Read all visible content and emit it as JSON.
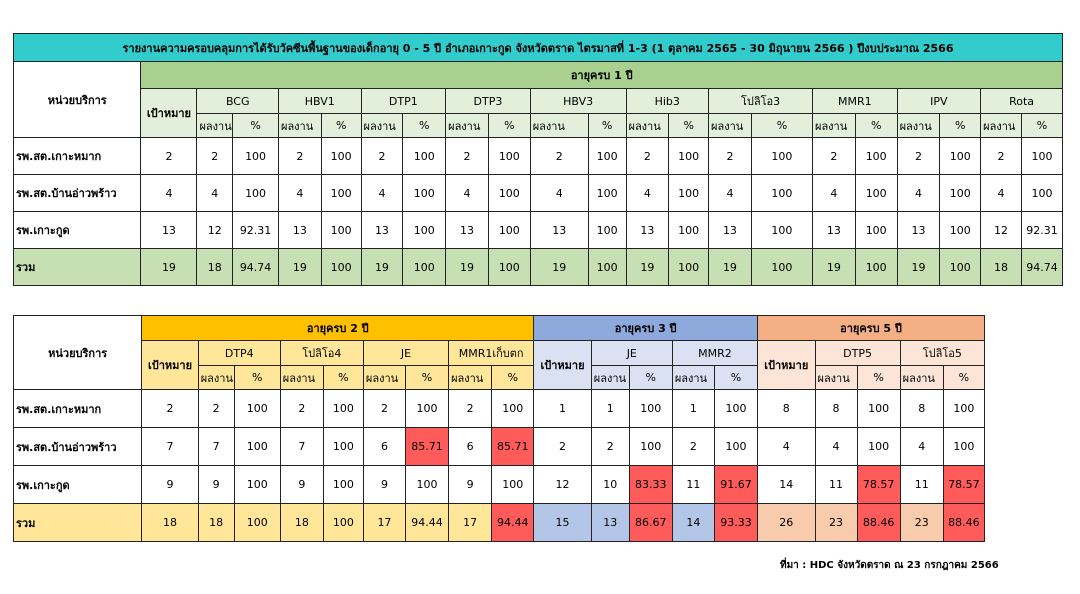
{
  "title": "รายงานความครอบคลุมการได้รับวัคซีนพื้นฐานของเด็กอายุ 0 - 5 ปี อำเภอเกาะกูด จังหวัดตราด ไตรมาสที่ 1-3 (1 ตุลาคม 2565 - 30 มิถุนายน 2566 ) ปีงบประมาณ 2566",
  "colors": {
    "title_bg": "#33CCCC",
    "age1_header": "#A9D08E",
    "age1_light": "#E2EFDA",
    "total_row1": "#C6E0B4",
    "age2_header": "#FFC000",
    "age2_light": "#FFE699",
    "age2_total": "#FFE699",
    "age3_header": "#8EA9DB",
    "age3_light": "#D9E1F2",
    "age3_total": "#B4C6E7",
    "age5_header": "#F4B084",
    "age5_light": "#FCE4D6",
    "age5_total": "#F8CBAD",
    "highlight_red": "#FF5B5B"
  },
  "labels": {
    "unit": "หน่วยบริการ",
    "target": "เป้าหมาย",
    "result": "ผลงาน",
    "percent": "%"
  },
  "table1": {
    "group": "อายุครบ 1 ปี",
    "vaccines": [
      "BCG",
      "HBV1",
      "DTP1",
      "DTP3",
      "HBV3",
      "Hib3",
      "โปลิโอ3",
      "MMR1",
      "IPV",
      "Rota"
    ],
    "rows": [
      {
        "name": "รพ.สต.เกาะหมาก",
        "cells": [
          "2",
          "2",
          "100",
          "2",
          "100",
          "2",
          "100",
          "2",
          "100",
          "2",
          "100",
          "2",
          "100",
          "2",
          "100",
          "2",
          "100",
          "2",
          "100",
          "2",
          "100"
        ]
      },
      {
        "name": "รพ.สต.บ้านอ่าวพร้าว",
        "cells": [
          "4",
          "4",
          "100",
          "4",
          "100",
          "4",
          "100",
          "4",
          "100",
          "4",
          "100",
          "4",
          "100",
          "4",
          "100",
          "4",
          "100",
          "4",
          "100",
          "4",
          "100"
        ]
      },
      {
        "name": "รพ.เกาะกูด",
        "cells": [
          "13",
          "12",
          "92.31",
          "13",
          "100",
          "13",
          "100",
          "13",
          "100",
          "13",
          "100",
          "13",
          "100",
          "13",
          "100",
          "13",
          "100",
          "13",
          "100",
          "12",
          "92.31"
        ]
      }
    ],
    "total": {
      "name": "รวม",
      "cells": [
        "19",
        "18",
        "94.74",
        "19",
        "100",
        "19",
        "100",
        "19",
        "100",
        "19",
        "100",
        "19",
        "100",
        "19",
        "100",
        "19",
        "100",
        "19",
        "100",
        "18",
        "94.74"
      ]
    }
  },
  "table2": {
    "groups": [
      "อายุครบ 2 ปี",
      "อายุครบ 3 ปี",
      "อายุครบ 5 ปี"
    ],
    "vaccines2": [
      "DTP4",
      "โปลิโอ4",
      "JE",
      "MMR1เก็บตก"
    ],
    "vaccines3": [
      "JE",
      "MMR2"
    ],
    "vaccines5": [
      "DTP5",
      "โปลิโอ5"
    ],
    "rows": [
      {
        "name": "รพ.สต.เกาะหมาก",
        "cells": [
          "2",
          "2",
          "100",
          "2",
          "100",
          "2",
          "100",
          "2",
          "100",
          "1",
          "1",
          "100",
          "1",
          "100",
          "8",
          "8",
          "100",
          "8",
          "100"
        ],
        "red": []
      },
      {
        "name": "รพ.สต.บ้านอ่าวพร้าว",
        "cells": [
          "7",
          "7",
          "100",
          "7",
          "100",
          "6",
          "85.71",
          "6",
          "85.71",
          "2",
          "2",
          "100",
          "2",
          "100",
          "4",
          "4",
          "100",
          "4",
          "100"
        ],
        "red": [
          6,
          8
        ]
      },
      {
        "name": "รพ.เกาะกูด",
        "cells": [
          "9",
          "9",
          "100",
          "9",
          "100",
          "9",
          "100",
          "9",
          "100",
          "12",
          "10",
          "83.33",
          "11",
          "91.67",
          "14",
          "11",
          "78.57",
          "11",
          "78.57"
        ],
        "red": [
          11,
          13,
          16,
          18
        ]
      }
    ],
    "total": {
      "name": "รวม",
      "cells": [
        "18",
        "18",
        "100",
        "18",
        "100",
        "17",
        "94.44",
        "17",
        "94.44",
        "15",
        "13",
        "86.67",
        "14",
        "93.33",
        "26",
        "23",
        "88.46",
        "23",
        "88.46"
      ],
      "red": [
        8,
        11,
        13,
        16,
        18
      ]
    }
  },
  "source": "ที่มา : HDC จังหวัดตราด ณ 23 กรกฎาคม 2566"
}
